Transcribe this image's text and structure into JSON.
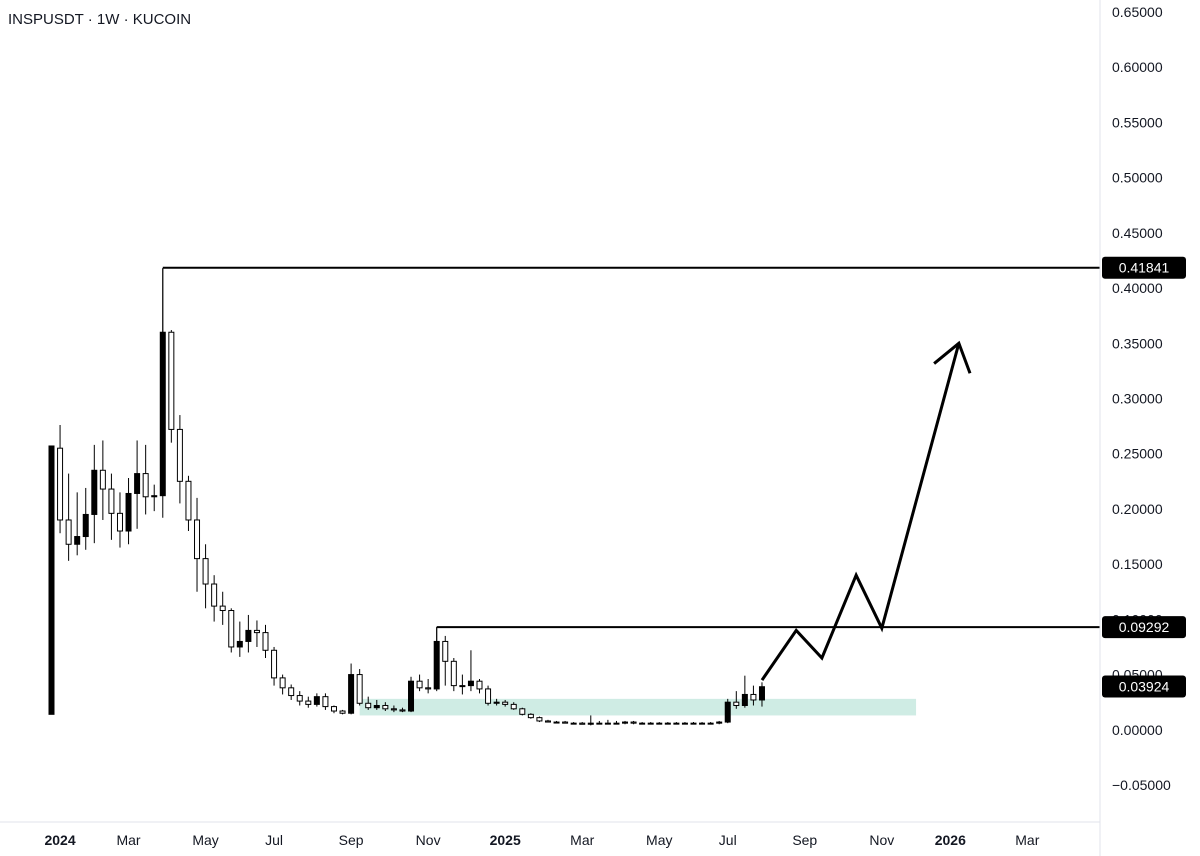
{
  "header": {
    "title": "INSPUSDT · 1W · KUCOIN"
  },
  "chart_data": {
    "type": "candlestick",
    "ylim": [
      -0.05,
      0.65
    ],
    "y_ticks": [
      "0.65000",
      "0.60000",
      "0.55000",
      "0.50000",
      "0.45000",
      "0.40000",
      "0.35000",
      "0.30000",
      "0.25000",
      "0.20000",
      "0.15000",
      "0.10000",
      "0.05000",
      "0.00000",
      "−0.05000"
    ],
    "x_ticks": [
      {
        "label": "2024",
        "week": 1,
        "year": true
      },
      {
        "label": "Mar",
        "week": 9
      },
      {
        "label": "May",
        "week": 18
      },
      {
        "label": "Jul",
        "week": 26
      },
      {
        "label": "Sep",
        "week": 35
      },
      {
        "label": "Nov",
        "week": 44
      },
      {
        "label": "2025",
        "week": 53,
        "year": true
      },
      {
        "label": "Mar",
        "week": 62
      },
      {
        "label": "May",
        "week": 71
      },
      {
        "label": "Jul",
        "week": 79
      },
      {
        "label": "Sep",
        "week": 88
      },
      {
        "label": "Nov",
        "week": 97
      },
      {
        "label": "2026",
        "week": 105,
        "year": true
      },
      {
        "label": "Mar",
        "week": 114
      }
    ],
    "candles": [
      [
        0,
        0.014,
        0.257,
        0.014,
        0.257
      ],
      [
        1,
        0.255,
        0.19,
        0.178,
        0.276
      ],
      [
        2,
        0.19,
        0.168,
        0.153,
        0.232
      ],
      [
        3,
        0.168,
        0.175,
        0.158,
        0.215
      ],
      [
        4,
        0.175,
        0.195,
        0.163,
        0.219
      ],
      [
        5,
        0.195,
        0.235,
        0.169,
        0.258
      ],
      [
        6,
        0.235,
        0.218,
        0.19,
        0.262
      ],
      [
        7,
        0.218,
        0.196,
        0.172,
        0.232
      ],
      [
        8,
        0.196,
        0.18,
        0.165,
        0.215
      ],
      [
        9,
        0.18,
        0.214,
        0.168,
        0.228
      ],
      [
        10,
        0.214,
        0.232,
        0.182,
        0.262
      ],
      [
        11,
        0.232,
        0.211,
        0.195,
        0.258
      ],
      [
        12,
        0.211,
        0.212,
        0.198,
        0.222
      ],
      [
        13,
        0.212,
        0.36,
        0.192,
        0.418
      ],
      [
        14,
        0.36,
        0.272,
        0.26,
        0.362
      ],
      [
        15,
        0.272,
        0.225,
        0.205,
        0.285
      ],
      [
        16,
        0.225,
        0.19,
        0.18,
        0.23
      ],
      [
        17,
        0.19,
        0.155,
        0.125,
        0.21
      ],
      [
        18,
        0.155,
        0.132,
        0.11,
        0.168
      ],
      [
        19,
        0.132,
        0.112,
        0.098,
        0.14
      ],
      [
        20,
        0.112,
        0.108,
        0.095,
        0.125
      ],
      [
        21,
        0.108,
        0.075,
        0.07,
        0.11
      ],
      [
        22,
        0.075,
        0.08,
        0.066,
        0.098
      ],
      [
        23,
        0.08,
        0.09,
        0.07,
        0.104
      ],
      [
        24,
        0.09,
        0.088,
        0.075,
        0.099
      ],
      [
        25,
        0.088,
        0.072,
        0.065,
        0.095
      ],
      [
        26,
        0.072,
        0.047,
        0.04,
        0.075
      ],
      [
        27,
        0.047,
        0.038,
        0.032,
        0.05
      ],
      [
        28,
        0.038,
        0.031,
        0.027,
        0.041
      ],
      [
        29,
        0.031,
        0.026,
        0.022,
        0.035
      ],
      [
        30,
        0.026,
        0.023,
        0.02,
        0.03
      ],
      [
        31,
        0.023,
        0.03,
        0.021,
        0.033
      ],
      [
        32,
        0.03,
        0.021,
        0.018,
        0.033
      ],
      [
        33,
        0.021,
        0.017,
        0.015,
        0.022
      ],
      [
        34,
        0.017,
        0.015,
        0.014,
        0.018
      ],
      [
        35,
        0.015,
        0.05,
        0.014,
        0.06
      ],
      [
        36,
        0.05,
        0.024,
        0.022,
        0.055
      ],
      [
        37,
        0.024,
        0.02,
        0.018,
        0.03
      ],
      [
        38,
        0.02,
        0.022,
        0.018,
        0.027
      ],
      [
        39,
        0.022,
        0.019,
        0.017,
        0.025
      ],
      [
        40,
        0.019,
        0.018,
        0.016,
        0.022
      ],
      [
        41,
        0.018,
        0.017,
        0.016,
        0.02
      ],
      [
        42,
        0.017,
        0.044,
        0.016,
        0.048
      ],
      [
        43,
        0.044,
        0.038,
        0.035,
        0.05
      ],
      [
        44,
        0.038,
        0.037,
        0.033,
        0.046
      ],
      [
        45,
        0.037,
        0.08,
        0.035,
        0.093
      ],
      [
        46,
        0.08,
        0.062,
        0.04,
        0.085
      ],
      [
        47,
        0.062,
        0.04,
        0.035,
        0.065
      ],
      [
        48,
        0.04,
        0.04,
        0.032,
        0.05
      ],
      [
        49,
        0.04,
        0.044,
        0.035,
        0.072
      ],
      [
        50,
        0.044,
        0.037,
        0.033,
        0.046
      ],
      [
        51,
        0.037,
        0.024,
        0.022,
        0.04
      ],
      [
        52,
        0.024,
        0.025,
        0.022,
        0.028
      ],
      [
        53,
        0.025,
        0.023,
        0.021,
        0.027
      ],
      [
        54,
        0.023,
        0.019,
        0.018,
        0.025
      ],
      [
        55,
        0.019,
        0.014,
        0.013,
        0.02
      ],
      [
        56,
        0.014,
        0.011,
        0.01,
        0.015
      ],
      [
        57,
        0.011,
        0.008,
        0.007,
        0.012
      ],
      [
        58,
        0.008,
        0.007,
        0.007,
        0.009
      ],
      [
        59,
        0.007,
        0.007,
        0.006,
        0.008
      ],
      [
        60,
        0.007,
        0.006,
        0.006,
        0.008
      ],
      [
        61,
        0.006,
        0.006,
        0.005,
        0.007
      ],
      [
        62,
        0.006,
        0.005,
        0.005,
        0.007
      ],
      [
        63,
        0.005,
        0.006,
        0.004,
        0.013
      ],
      [
        64,
        0.006,
        0.006,
        0.005,
        0.008
      ],
      [
        65,
        0.006,
        0.006,
        0.005,
        0.009
      ],
      [
        66,
        0.006,
        0.006,
        0.005,
        0.008
      ],
      [
        67,
        0.006,
        0.007,
        0.005,
        0.008
      ],
      [
        68,
        0.007,
        0.006,
        0.005,
        0.008
      ],
      [
        69,
        0.006,
        0.006,
        0.005,
        0.007
      ],
      [
        70,
        0.006,
        0.006,
        0.005,
        0.007
      ],
      [
        71,
        0.006,
        0.006,
        0.005,
        0.007
      ],
      [
        72,
        0.006,
        0.006,
        0.005,
        0.007
      ],
      [
        73,
        0.006,
        0.006,
        0.005,
        0.007
      ],
      [
        74,
        0.006,
        0.006,
        0.005,
        0.007
      ],
      [
        75,
        0.006,
        0.006,
        0.005,
        0.007
      ],
      [
        76,
        0.006,
        0.006,
        0.005,
        0.007
      ],
      [
        77,
        0.006,
        0.006,
        0.005,
        0.007
      ],
      [
        78,
        0.006,
        0.007,
        0.005,
        0.008
      ],
      [
        79,
        0.007,
        0.025,
        0.006,
        0.028
      ],
      [
        80,
        0.025,
        0.022,
        0.019,
        0.035
      ],
      [
        81,
        0.022,
        0.032,
        0.02,
        0.049
      ],
      [
        82,
        0.032,
        0.027,
        0.022,
        0.04
      ],
      [
        83,
        0.027,
        0.039,
        0.021,
        0.043
      ]
    ],
    "levels": [
      {
        "name": "high-level",
        "value": 0.41841,
        "label": "0.41841",
        "from_week": 13
      },
      {
        "name": "resistance-level",
        "value": 0.09292,
        "label": "0.09292",
        "from_week": 45
      }
    ],
    "current_price": {
      "value": 0.03924,
      "label": "0.03924"
    },
    "zone": {
      "from_week": 36,
      "to_week": 101,
      "low": 0.013,
      "high": 0.028,
      "color": "#cfece4"
    },
    "projection": [
      [
        83,
        0.045
      ],
      [
        87,
        0.09
      ],
      [
        90,
        0.065
      ],
      [
        94,
        0.14
      ],
      [
        97,
        0.092
      ],
      [
        106,
        0.35
      ]
    ],
    "colors": {
      "up": "#000000",
      "down": "#ffffff",
      "outline": "#000000",
      "text": "#131722",
      "label_bg": "#000000"
    }
  }
}
